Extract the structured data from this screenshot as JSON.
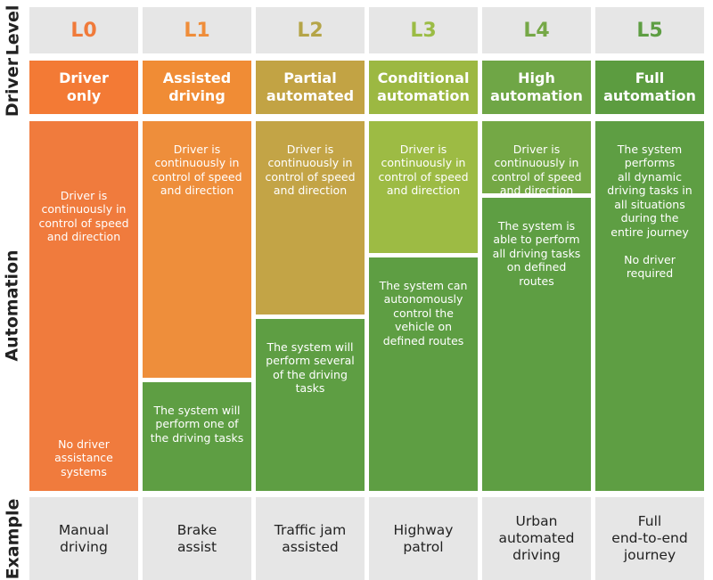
{
  "row_labels": {
    "level": "Level",
    "driver": "Driver",
    "automation": "Automation",
    "example": "Example"
  },
  "columns": [
    {
      "level": "L0",
      "name": "Driver\nonly",
      "level_color": "#f07a3a",
      "name_bg": "#f37a35",
      "blocks": [
        {
          "text": "Driver is\ncontinuously in\ncontrol of speed\nand direction\n\n\n\n\n\n\n\n\n\n\n\n\n\n\nNo driver\nassistance\nsystems",
          "bg": "#f07b3d"
        }
      ],
      "example": "Manual\ndriving"
    },
    {
      "level": "L1",
      "name": "Assisted\ndriving",
      "level_color": "#ef8d3a",
      "name_bg": "#f08c35",
      "blocks": [
        {
          "text": "Driver is\ncontinuously in\ncontrol of speed\nand direction",
          "bg": "#ee8e3b"
        },
        {
          "text": "The system will\nperform one of\nthe driving tasks",
          "bg": "#5e9e43"
        }
      ],
      "example": "Brake\nassist"
    },
    {
      "level": "L2",
      "name": "Partial\nautomated",
      "level_color": "#b5a548",
      "name_bg": "#c2a344",
      "blocks": [
        {
          "text": "Driver is\ncontinuously in\ncontrol of speed\nand direction",
          "bg": "#c3a446"
        },
        {
          "text": "The system will\nperform several\nof the driving\ntasks",
          "bg": "#5e9e43"
        }
      ],
      "example": "Traffic jam\nassisted"
    },
    {
      "level": "L3",
      "name": "Conditional\nautomation",
      "level_color": "#9bbc45",
      "name_bg": "#9cb842",
      "blocks": [
        {
          "text": "Driver is\ncontinuously in\ncontrol of speed\nand direction",
          "bg": "#9dbb44"
        },
        {
          "text": "The system can\nautonomously\ncontrol the\nvehicle on\ndefined routes",
          "bg": "#5e9e43"
        }
      ],
      "example": "Highway\npatrol"
    },
    {
      "level": "L4",
      "name": "High\nautomation",
      "level_color": "#76a847",
      "name_bg": "#6fa646",
      "blocks": [
        {
          "text": "Driver is\ncontinuously in\ncontrol of speed\nand direction",
          "bg": "#74a845"
        },
        {
          "text": "The system is\nable to perform\nall driving tasks\non defined\nroutes",
          "bg": "#5e9e43"
        }
      ],
      "example": "Urban\nautomated\ndriving"
    },
    {
      "level": "L5",
      "name": "Full\nautomation",
      "level_color": "#5e9e43",
      "name_bg": "#5c9c40",
      "blocks": [
        {
          "text": "The system\nperforms\nall dynamic\ndriving tasks in\nall situations\nduring the\nentire journey\n\nNo driver\nrequired",
          "bg": "#5e9e43"
        }
      ],
      "example": "Full\nend-to-end\njourney"
    }
  ]
}
